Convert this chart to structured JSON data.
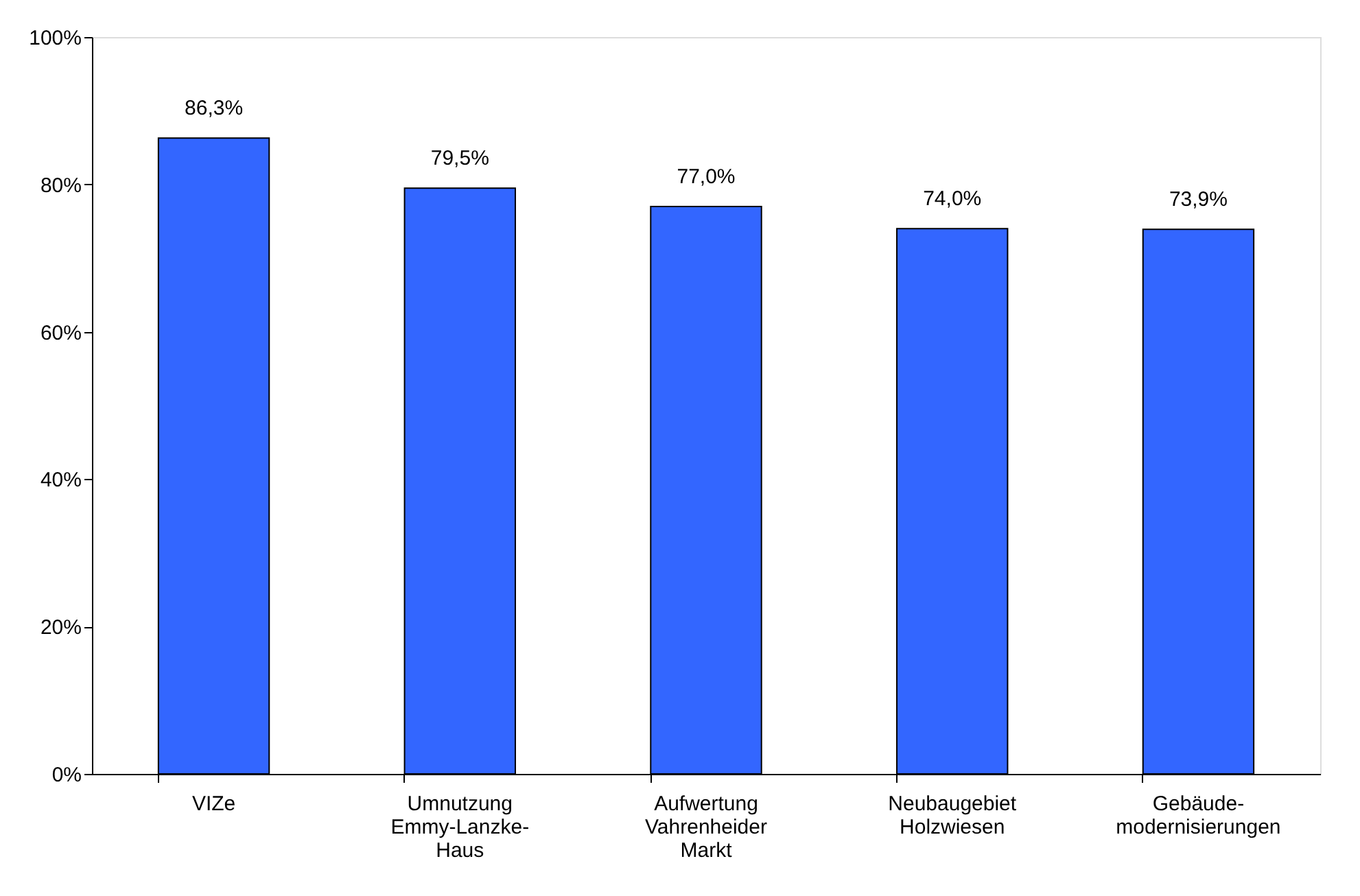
{
  "chart_data": {
    "type": "bar",
    "categories": [
      "VIZe",
      "Umnutzung\nEmmy-Lanzke-\nHaus",
      "Aufwertung\nVahrenheider\nMarkt",
      "Neubaugebiet\nHolzwiesen",
      "Gebäude-\nmodernisierungen"
    ],
    "values": [
      86.3,
      79.5,
      77.0,
      74.0,
      73.9
    ],
    "value_labels": [
      "86,3%",
      "79,5%",
      "77,0%",
      "74,0%",
      "73,9%"
    ],
    "color": "#3366ff",
    "ylim": [
      0,
      100
    ],
    "yticks": [
      {
        "value": 0,
        "label": "0%"
      },
      {
        "value": 20,
        "label": "20%"
      },
      {
        "value": 40,
        "label": "40%"
      },
      {
        "value": 60,
        "label": "60%"
      },
      {
        "value": 80,
        "label": "80%"
      },
      {
        "value": 100,
        "label": "100%"
      }
    ],
    "grid": false
  }
}
